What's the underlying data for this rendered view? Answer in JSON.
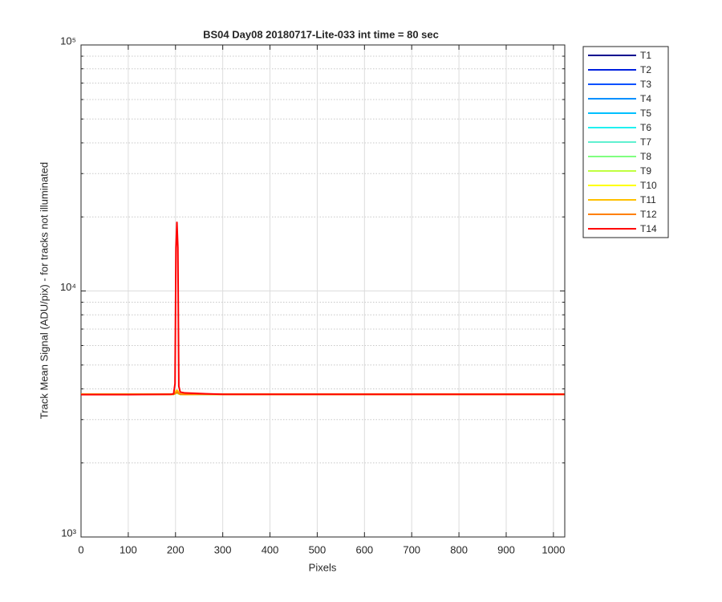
{
  "chart_data": {
    "type": "line",
    "title": "BS04 Day08 20180717-Lite-033 int time = 80 sec",
    "xlabel": "Pixels",
    "ylabel": "Track Mean Signal (ADU/pix) - for tracks not illuminated",
    "x": [
      0,
      100,
      190,
      196,
      199,
      201,
      203,
      205,
      207,
      210,
      220,
      250,
      300,
      400,
      500,
      600,
      700,
      800,
      900,
      1000,
      1023
    ],
    "xlim": [
      0,
      1024
    ],
    "xticks": [
      0,
      100,
      200,
      300,
      400,
      500,
      600,
      700,
      800,
      900,
      1000
    ],
    "ylim": [
      1000,
      100000
    ],
    "yticks": [
      {
        "value": 1000,
        "label": "10³"
      },
      {
        "value": 10000,
        "label": "10⁴"
      },
      {
        "value": 100000,
        "label": "10⁵"
      }
    ],
    "log_y": true,
    "grid": true,
    "minor_grid": true,
    "legend": "outside-right",
    "series": [
      {
        "name": "T1",
        "color": "#00008f",
        "values": [
          3800,
          3800,
          3800,
          3805,
          3820,
          3840,
          3850,
          3840,
          3820,
          3805,
          3800,
          3805,
          3800,
          3800,
          3800,
          3800,
          3800,
          3800,
          3800,
          3800,
          3800
        ]
      },
      {
        "name": "T2",
        "color": "#0020df",
        "values": [
          3800,
          3800,
          3800,
          3805,
          3820,
          3840,
          3850,
          3840,
          3820,
          3805,
          3800,
          3805,
          3800,
          3800,
          3800,
          3800,
          3800,
          3800,
          3800,
          3800,
          3800
        ]
      },
      {
        "name": "T3",
        "color": "#0050ff",
        "values": [
          3800,
          3800,
          3800,
          3805,
          3820,
          3840,
          3850,
          3840,
          3820,
          3805,
          3800,
          3805,
          3800,
          3800,
          3800,
          3800,
          3800,
          3800,
          3800,
          3800,
          3800
        ]
      },
      {
        "name": "T4",
        "color": "#0090ff",
        "values": [
          3800,
          3800,
          3800,
          3805,
          3820,
          3840,
          3850,
          3840,
          3820,
          3805,
          3800,
          3805,
          3800,
          3800,
          3800,
          3800,
          3800,
          3800,
          3800,
          3800,
          3800
        ]
      },
      {
        "name": "T5",
        "color": "#00c0ff",
        "values": [
          3800,
          3800,
          3800,
          3805,
          3820,
          3840,
          3850,
          3840,
          3820,
          3805,
          3800,
          3805,
          3800,
          3800,
          3800,
          3800,
          3800,
          3800,
          3800,
          3800,
          3800
        ]
      },
      {
        "name": "T6",
        "color": "#20f0f0",
        "values": [
          3800,
          3800,
          3800,
          3805,
          3820,
          3840,
          3850,
          3840,
          3820,
          3805,
          3800,
          3805,
          3800,
          3800,
          3800,
          3800,
          3800,
          3800,
          3800,
          3800,
          3800
        ]
      },
      {
        "name": "T7",
        "color": "#60f0d0",
        "values": [
          3800,
          3800,
          3800,
          3805,
          3820,
          3840,
          3850,
          3840,
          3820,
          3805,
          3800,
          3805,
          3800,
          3800,
          3800,
          3800,
          3800,
          3800,
          3800,
          3800,
          3800
        ]
      },
      {
        "name": "T8",
        "color": "#80ff80",
        "values": [
          3800,
          3800,
          3800,
          3805,
          3820,
          3840,
          3850,
          3840,
          3820,
          3805,
          3800,
          3805,
          3800,
          3800,
          3800,
          3800,
          3800,
          3800,
          3800,
          3800,
          3800
        ]
      },
      {
        "name": "T9",
        "color": "#c0ff40",
        "values": [
          3800,
          3800,
          3800,
          3805,
          3820,
          3840,
          3850,
          3840,
          3820,
          3805,
          3800,
          3805,
          3800,
          3800,
          3800,
          3800,
          3800,
          3800,
          3800,
          3800,
          3800
        ]
      },
      {
        "name": "T10",
        "color": "#ffff00",
        "values": [
          3800,
          3800,
          3800,
          3805,
          3820,
          3860,
          3880,
          3860,
          3820,
          3805,
          3800,
          3805,
          3800,
          3800,
          3800,
          3800,
          3800,
          3800,
          3800,
          3800,
          3800
        ]
      },
      {
        "name": "T11",
        "color": "#ffc000",
        "values": [
          3800,
          3800,
          3800,
          3810,
          3850,
          3920,
          3950,
          3920,
          3850,
          3810,
          3800,
          3805,
          3800,
          3800,
          3800,
          3800,
          3800,
          3800,
          3800,
          3800,
          3800
        ]
      },
      {
        "name": "T12",
        "color": "#ff8000",
        "values": [
          3800,
          3800,
          3800,
          3805,
          3830,
          3860,
          3880,
          3860,
          3830,
          3805,
          3800,
          3805,
          3800,
          3800,
          3800,
          3800,
          3800,
          3800,
          3800,
          3800,
          3800
        ]
      },
      {
        "name": "T14",
        "color": "#ff0000",
        "values": [
          3790,
          3790,
          3800,
          3820,
          4200,
          15000,
          19000,
          15000,
          4100,
          3880,
          3850,
          3830,
          3800,
          3800,
          3800,
          3800,
          3800,
          3800,
          3800,
          3800,
          3800
        ]
      }
    ]
  }
}
